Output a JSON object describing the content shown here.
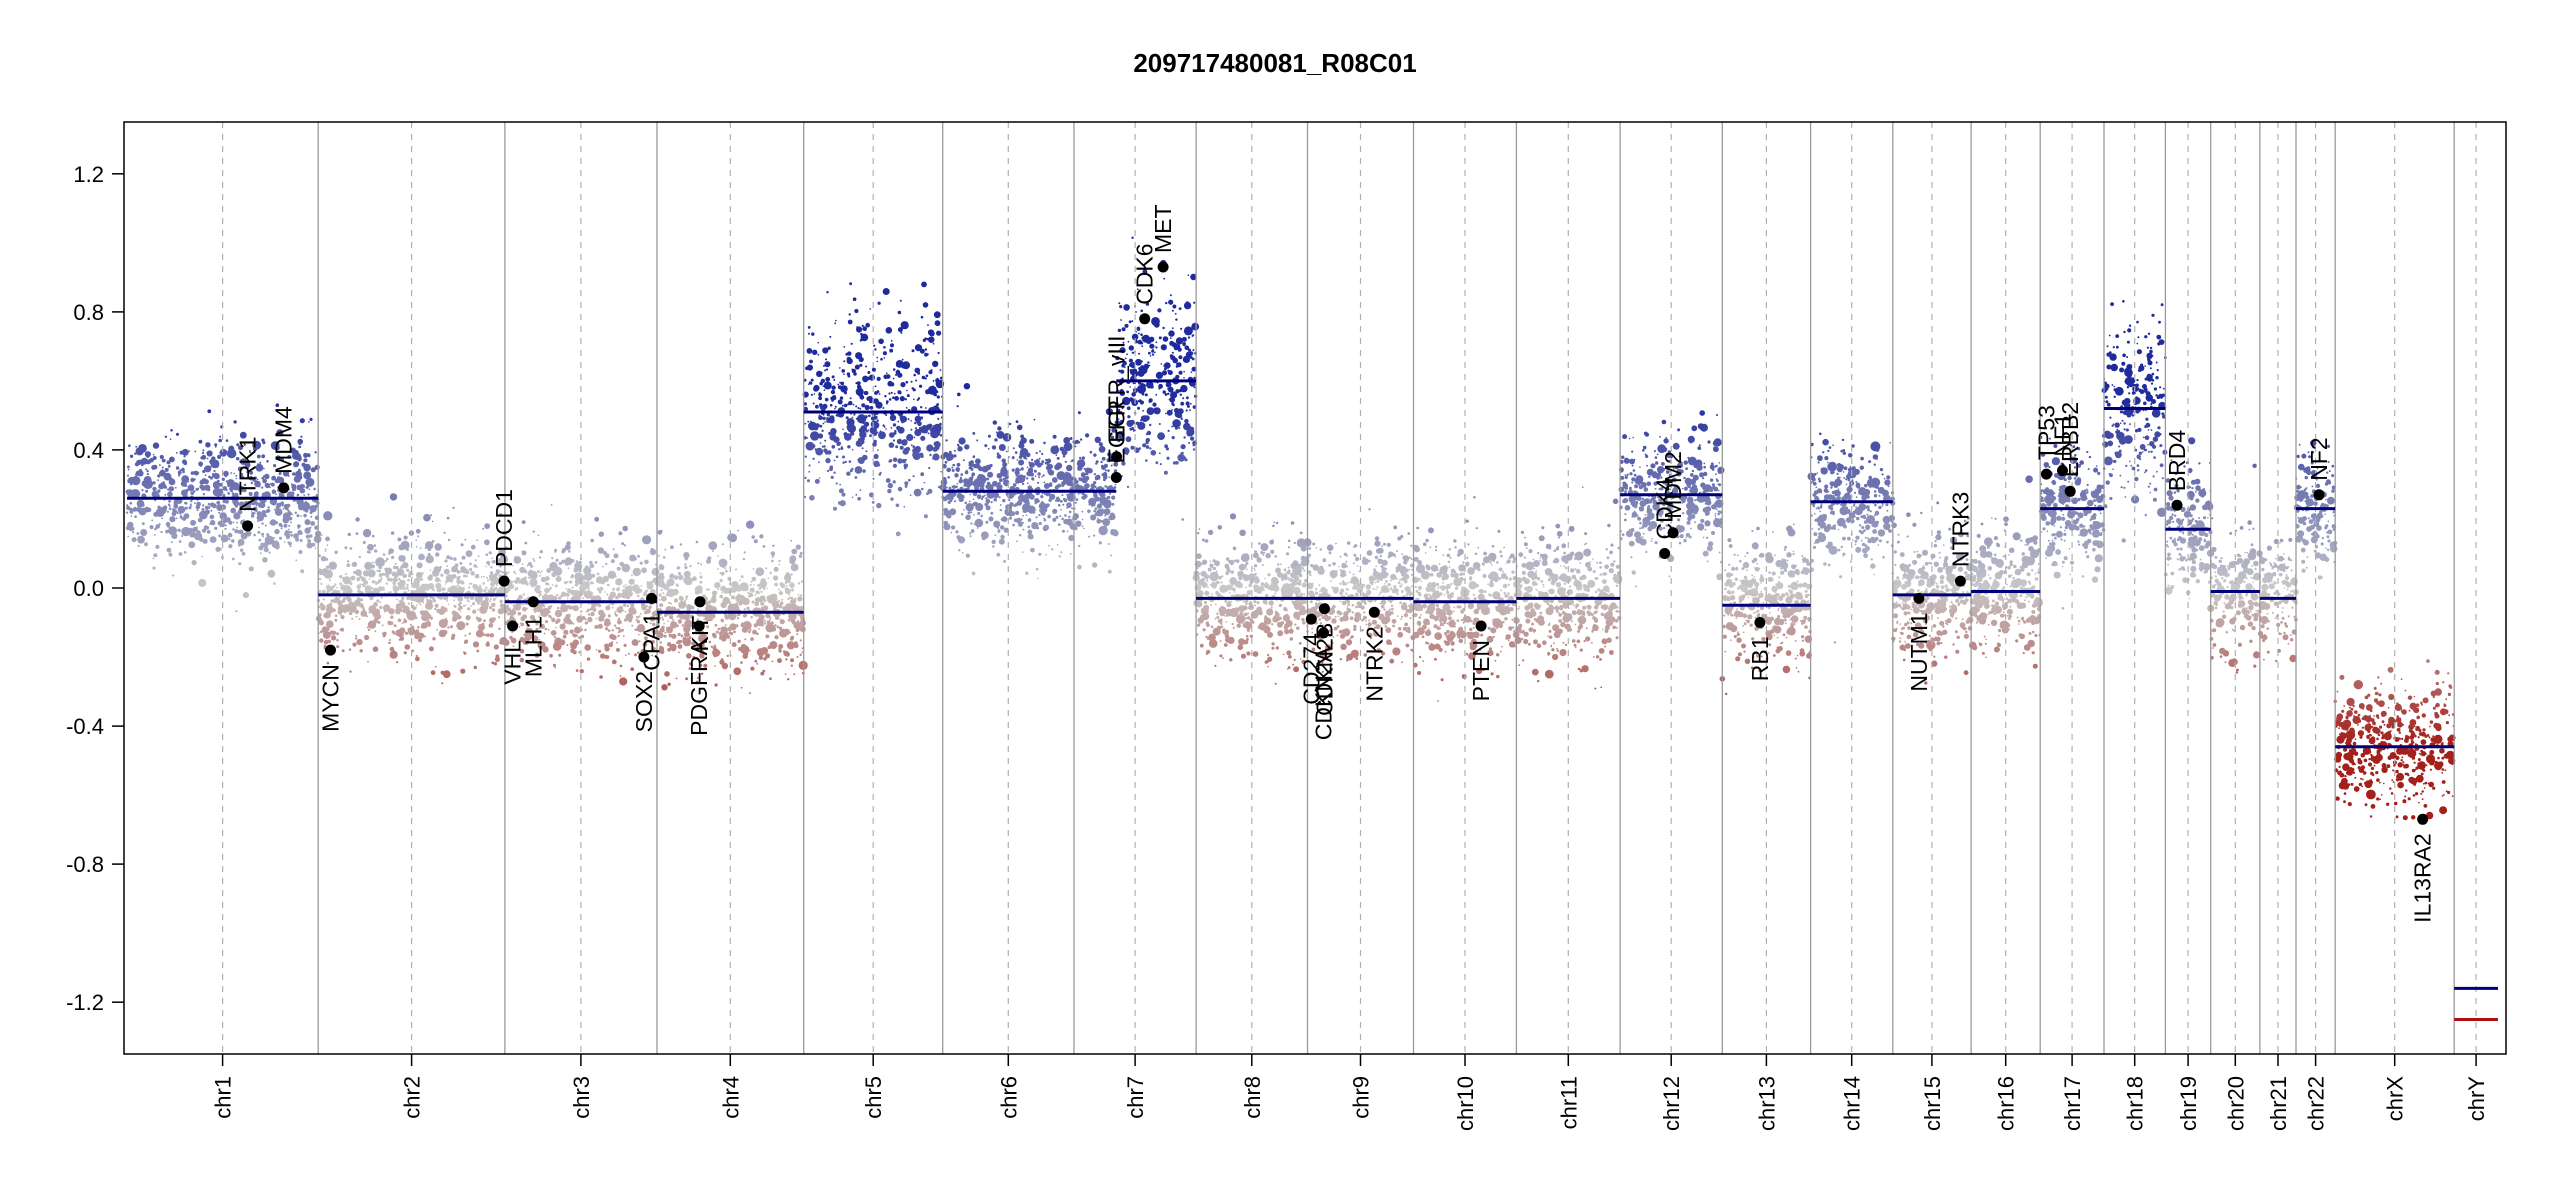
{
  "chart_data": {
    "type": "scatter",
    "title": "209717480081_R08C01",
    "xlabel": "",
    "ylabel": "",
    "ylim": [
      -1.35,
      1.35
    ],
    "yticks": [
      -1.2,
      -0.8,
      -0.4,
      0.0,
      0.4,
      0.8,
      1.2
    ],
    "ytick_labels": [
      "-1.2",
      "-0.8",
      "-0.4",
      "0.0",
      "0.4",
      "0.8",
      "1.2"
    ],
    "colors": {
      "gain": "#1f2a9c",
      "neutral": "#c8c8c8",
      "loss": "#a3201b",
      "segment": "#00007a",
      "segment_loss": "#b01010"
    },
    "chromosomes": [
      {
        "name": "chr1",
        "length": 249,
        "segments": [
          {
            "start": 0,
            "end": 249,
            "value": 0.26
          }
        ]
      },
      {
        "name": "chr2",
        "length": 243,
        "segments": [
          {
            "start": 0,
            "end": 243,
            "value": -0.02
          }
        ]
      },
      {
        "name": "chr3",
        "length": 198,
        "segments": [
          {
            "start": 0,
            "end": 198,
            "value": -0.04
          }
        ]
      },
      {
        "name": "chr4",
        "length": 191,
        "segments": [
          {
            "start": 0,
            "end": 191,
            "value": -0.07
          }
        ]
      },
      {
        "name": "chr5",
        "length": 181,
        "segments": [
          {
            "start": 0,
            "end": 181,
            "value": 0.51
          }
        ]
      },
      {
        "name": "chr6",
        "length": 171,
        "segments": [
          {
            "start": 0,
            "end": 171,
            "value": 0.28
          }
        ]
      },
      {
        "name": "chr7",
        "length": 159,
        "segments": [
          {
            "start": 0,
            "end": 55,
            "value": 0.28
          },
          {
            "start": 55,
            "end": 159,
            "value": 0.6
          }
        ]
      },
      {
        "name": "chr8",
        "length": 145,
        "segments": [
          {
            "start": 0,
            "end": 145,
            "value": -0.03
          }
        ]
      },
      {
        "name": "chr9",
        "length": 138,
        "segments": [
          {
            "start": 0,
            "end": 138,
            "value": -0.03
          }
        ]
      },
      {
        "name": "chr10",
        "length": 134,
        "segments": [
          {
            "start": 0,
            "end": 134,
            "value": -0.04
          }
        ]
      },
      {
        "name": "chr11",
        "length": 135,
        "segments": [
          {
            "start": 0,
            "end": 135,
            "value": -0.03
          }
        ]
      },
      {
        "name": "chr12",
        "length": 133,
        "segments": [
          {
            "start": 0,
            "end": 133,
            "value": 0.27
          }
        ]
      },
      {
        "name": "chr13",
        "length": 115,
        "segments": [
          {
            "start": 0,
            "end": 115,
            "value": -0.05
          }
        ]
      },
      {
        "name": "chr14",
        "length": 107,
        "segments": [
          {
            "start": 0,
            "end": 107,
            "value": 0.25
          }
        ]
      },
      {
        "name": "chr15",
        "length": 102,
        "segments": [
          {
            "start": 0,
            "end": 102,
            "value": -0.02
          }
        ]
      },
      {
        "name": "chr16",
        "length": 90,
        "segments": [
          {
            "start": 0,
            "end": 90,
            "value": -0.01
          }
        ]
      },
      {
        "name": "chr17",
        "length": 83,
        "segments": [
          {
            "start": 0,
            "end": 83,
            "value": 0.23
          }
        ]
      },
      {
        "name": "chr18",
        "length": 80,
        "segments": [
          {
            "start": 0,
            "end": 80,
            "value": 0.52
          }
        ]
      },
      {
        "name": "chr19",
        "length": 59,
        "segments": [
          {
            "start": 0,
            "end": 59,
            "value": 0.17
          }
        ]
      },
      {
        "name": "chr20",
        "length": 64,
        "segments": [
          {
            "start": 0,
            "end": 64,
            "value": -0.01
          }
        ]
      },
      {
        "name": "chr21",
        "length": 47,
        "segments": [
          {
            "start": 0,
            "end": 47,
            "value": -0.03
          }
        ]
      },
      {
        "name": "chr22",
        "length": 51,
        "segments": [
          {
            "start": 0,
            "end": 51,
            "value": 0.23
          }
        ]
      },
      {
        "name": "chrX",
        "length": 155,
        "segments": [
          {
            "start": 0,
            "end": 155,
            "value": -0.46
          }
        ]
      },
      {
        "name": "chrY",
        "length": 57,
        "segments": [
          {
            "start": 0,
            "end": 57,
            "value": -1.16
          },
          {
            "start": 0,
            "end": 57,
            "value": -1.25,
            "color": "loss"
          }
        ]
      }
    ],
    "genes": [
      {
        "name": "NTRK1",
        "chr": "chr1",
        "pos": 157,
        "value": 0.18,
        "label": "above"
      },
      {
        "name": "MDM4",
        "chr": "chr1",
        "pos": 204,
        "value": 0.29,
        "label": "above"
      },
      {
        "name": "MYCN",
        "chr": "chr2",
        "pos": 16,
        "value": -0.18,
        "label": "below"
      },
      {
        "name": "PDCD1",
        "chr": "chr2",
        "pos": 242,
        "value": 0.02,
        "label": "above"
      },
      {
        "name": "VHL",
        "chr": "chr3",
        "pos": 10,
        "value": -0.11,
        "label": "below"
      },
      {
        "name": "MLH1",
        "chr": "chr3",
        "pos": 37,
        "value": -0.04,
        "label": "below"
      },
      {
        "name": "SOX2",
        "chr": "chr3",
        "pos": 181,
        "value": -0.2,
        "label": "below"
      },
      {
        "name": "CPA1",
        "chr": "chr3",
        "pos": 191,
        "value": -0.03,
        "label": "below"
      },
      {
        "name": "PDGFRA",
        "chr": "chr4",
        "pos": 55,
        "value": -0.11,
        "label": "below"
      },
      {
        "name": "KIT",
        "chr": "chr4",
        "pos": 56,
        "value": -0.04,
        "label": "below"
      },
      {
        "name": "EGFR",
        "chr": "chr7",
        "pos": 55,
        "value": 0.32,
        "label": "above"
      },
      {
        "name": "EGFR_vIII",
        "chr": "chr7",
        "pos": 55.5,
        "value": 0.38,
        "label": "above"
      },
      {
        "name": "CDK6",
        "chr": "chr7",
        "pos": 92,
        "value": 0.78,
        "label": "above"
      },
      {
        "name": "MET",
        "chr": "chr7",
        "pos": 116,
        "value": 0.93,
        "label": "above"
      },
      {
        "name": "CD274",
        "chr": "chr9",
        "pos": 5,
        "value": -0.09,
        "label": "below"
      },
      {
        "name": "CDKN2A",
        "chr": "chr9",
        "pos": 21,
        "value": -0.13,
        "label": "below"
      },
      {
        "name": "CDKN2B",
        "chr": "chr9",
        "pos": 22,
        "value": -0.06,
        "label": "below"
      },
      {
        "name": "NTRK2",
        "chr": "chr9",
        "pos": 87,
        "value": -0.07,
        "label": "below"
      },
      {
        "name": "PTEN",
        "chr": "chr10",
        "pos": 88,
        "value": -0.11,
        "label": "below"
      },
      {
        "name": "CDK4",
        "chr": "chr12",
        "pos": 58,
        "value": 0.1,
        "label": "above"
      },
      {
        "name": "MDM2",
        "chr": "chr12",
        "pos": 69,
        "value": 0.16,
        "label": "above"
      },
      {
        "name": "RB1",
        "chr": "chr13",
        "pos": 49,
        "value": -0.1,
        "label": "below"
      },
      {
        "name": "NUTM1",
        "chr": "chr15",
        "pos": 34,
        "value": -0.03,
        "label": "below"
      },
      {
        "name": "NTRK3",
        "chr": "chr15",
        "pos": 88,
        "value": 0.02,
        "label": "above"
      },
      {
        "name": "TP53",
        "chr": "chr17",
        "pos": 8,
        "value": 0.33,
        "label": "above"
      },
      {
        "name": "NF1",
        "chr": "chr17",
        "pos": 29,
        "value": 0.34,
        "label": "above"
      },
      {
        "name": "ERBB2",
        "chr": "chr17",
        "pos": 39,
        "value": 0.28,
        "label": "above"
      },
      {
        "name": "BRD4",
        "chr": "chr19",
        "pos": 15,
        "value": 0.24,
        "label": "above"
      },
      {
        "name": "NF2",
        "chr": "chr22",
        "pos": 30,
        "value": 0.27,
        "label": "above"
      },
      {
        "name": "IL13RA2",
        "chr": "chrX",
        "pos": 114,
        "value": -0.67,
        "label": "below"
      }
    ]
  }
}
